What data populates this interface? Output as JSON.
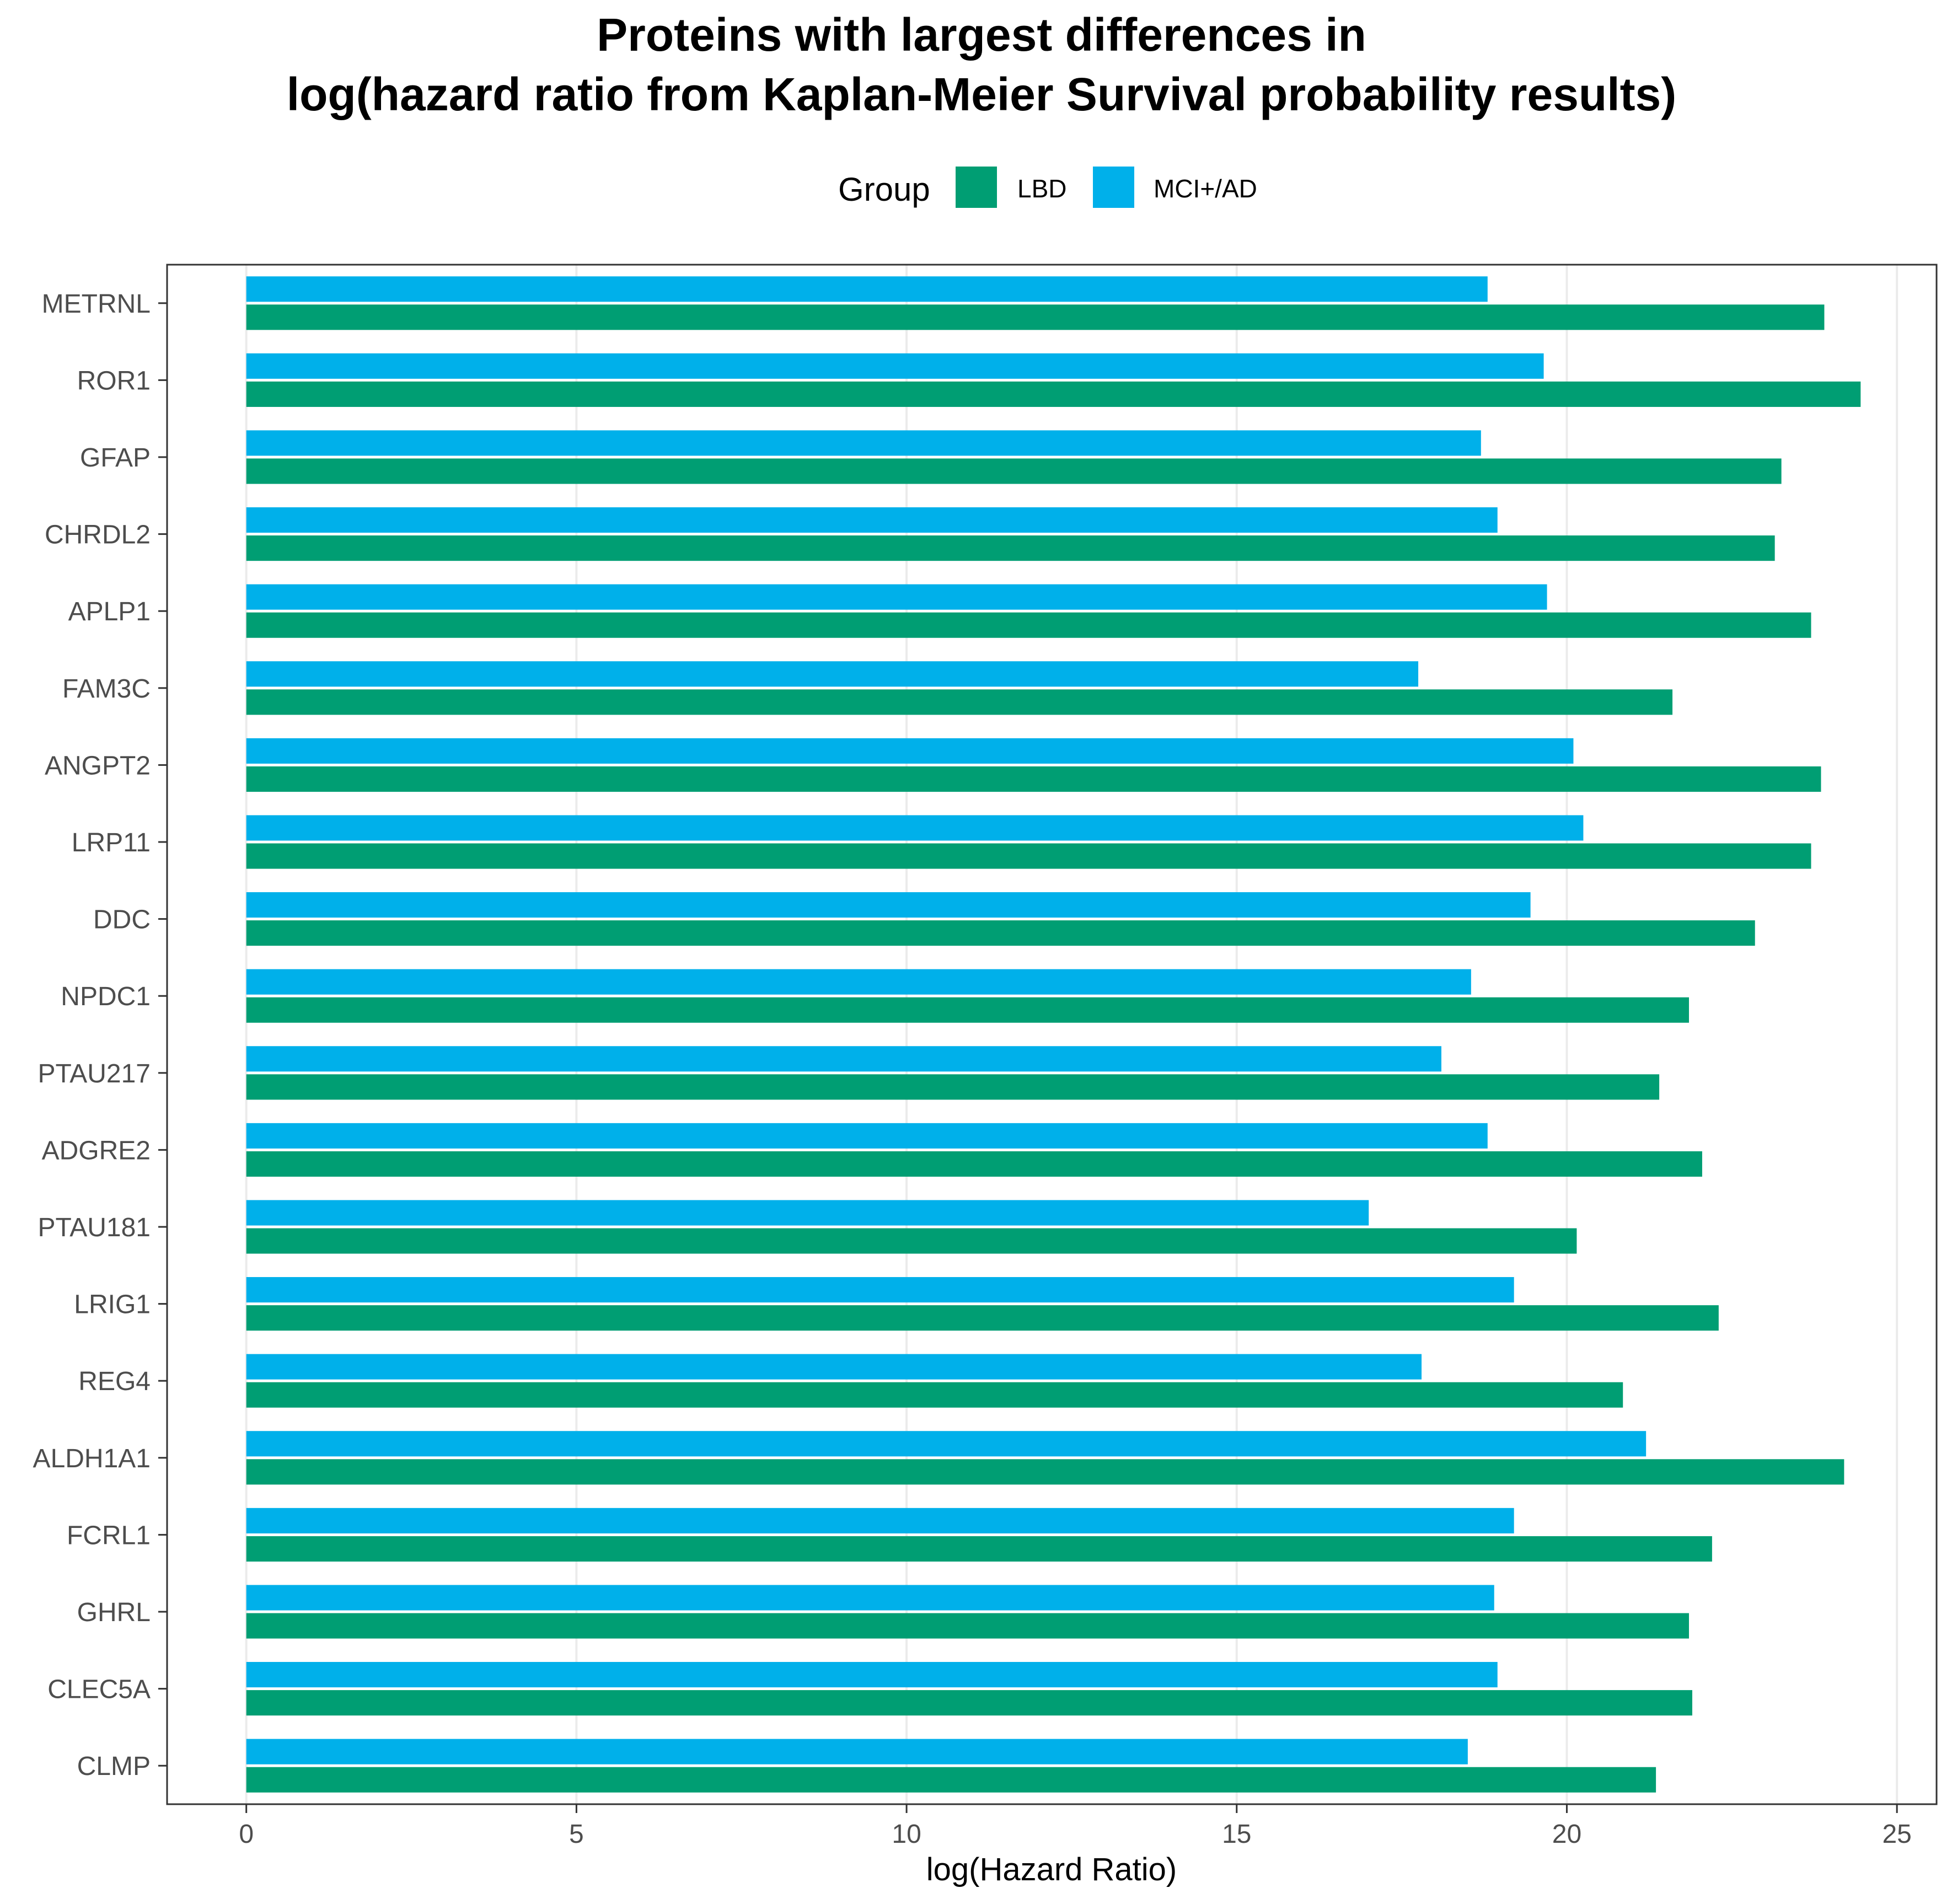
{
  "chart_data": {
    "type": "bar",
    "orientation": "horizontal",
    "title_lines": [
      "Proteins with largest differences in",
      "log(hazard ratio from Kaplan-Meier Survival probability results)"
    ],
    "xlabel": "log(Hazard Ratio)",
    "ylabel": "",
    "xlim": [
      -1.2,
      25.6
    ],
    "xticks": [
      0,
      5,
      10,
      15,
      20,
      25
    ],
    "grid": true,
    "legend": {
      "title": "Group",
      "position": "top",
      "items": [
        {
          "label": "LBD",
          "color": "#009E73"
        },
        {
          "label": "MCI+/AD",
          "color": "#00B0EA"
        }
      ]
    },
    "categories": [
      "METRNL",
      "ROR1",
      "GFAP",
      "CHRDL2",
      "APLP1",
      "FAM3C",
      "ANGPT2",
      "LRP11",
      "DDC",
      "NPDC1",
      "PTAU217",
      "ADGRE2",
      "PTAU181",
      "LRIG1",
      "REG4",
      "ALDH1A1",
      "FCRL1",
      "GHRL",
      "CLEC5A",
      "CLMP"
    ],
    "series": [
      {
        "name": "MCI+/AD",
        "color": "#00B0EA",
        "values": [
          18.8,
          19.65,
          18.7,
          18.95,
          19.7,
          17.75,
          20.1,
          20.25,
          19.45,
          18.55,
          18.1,
          18.8,
          17.0,
          19.2,
          17.8,
          21.2,
          19.2,
          18.9,
          18.95,
          18.5
        ]
      },
      {
        "name": "LBD",
        "color": "#009E73",
        "values": [
          23.9,
          24.45,
          23.25,
          23.15,
          23.7,
          21.6,
          23.85,
          23.7,
          22.85,
          21.85,
          21.4,
          22.05,
          20.15,
          22.3,
          20.85,
          24.2,
          22.2,
          21.85,
          21.9,
          21.35
        ]
      }
    ]
  }
}
